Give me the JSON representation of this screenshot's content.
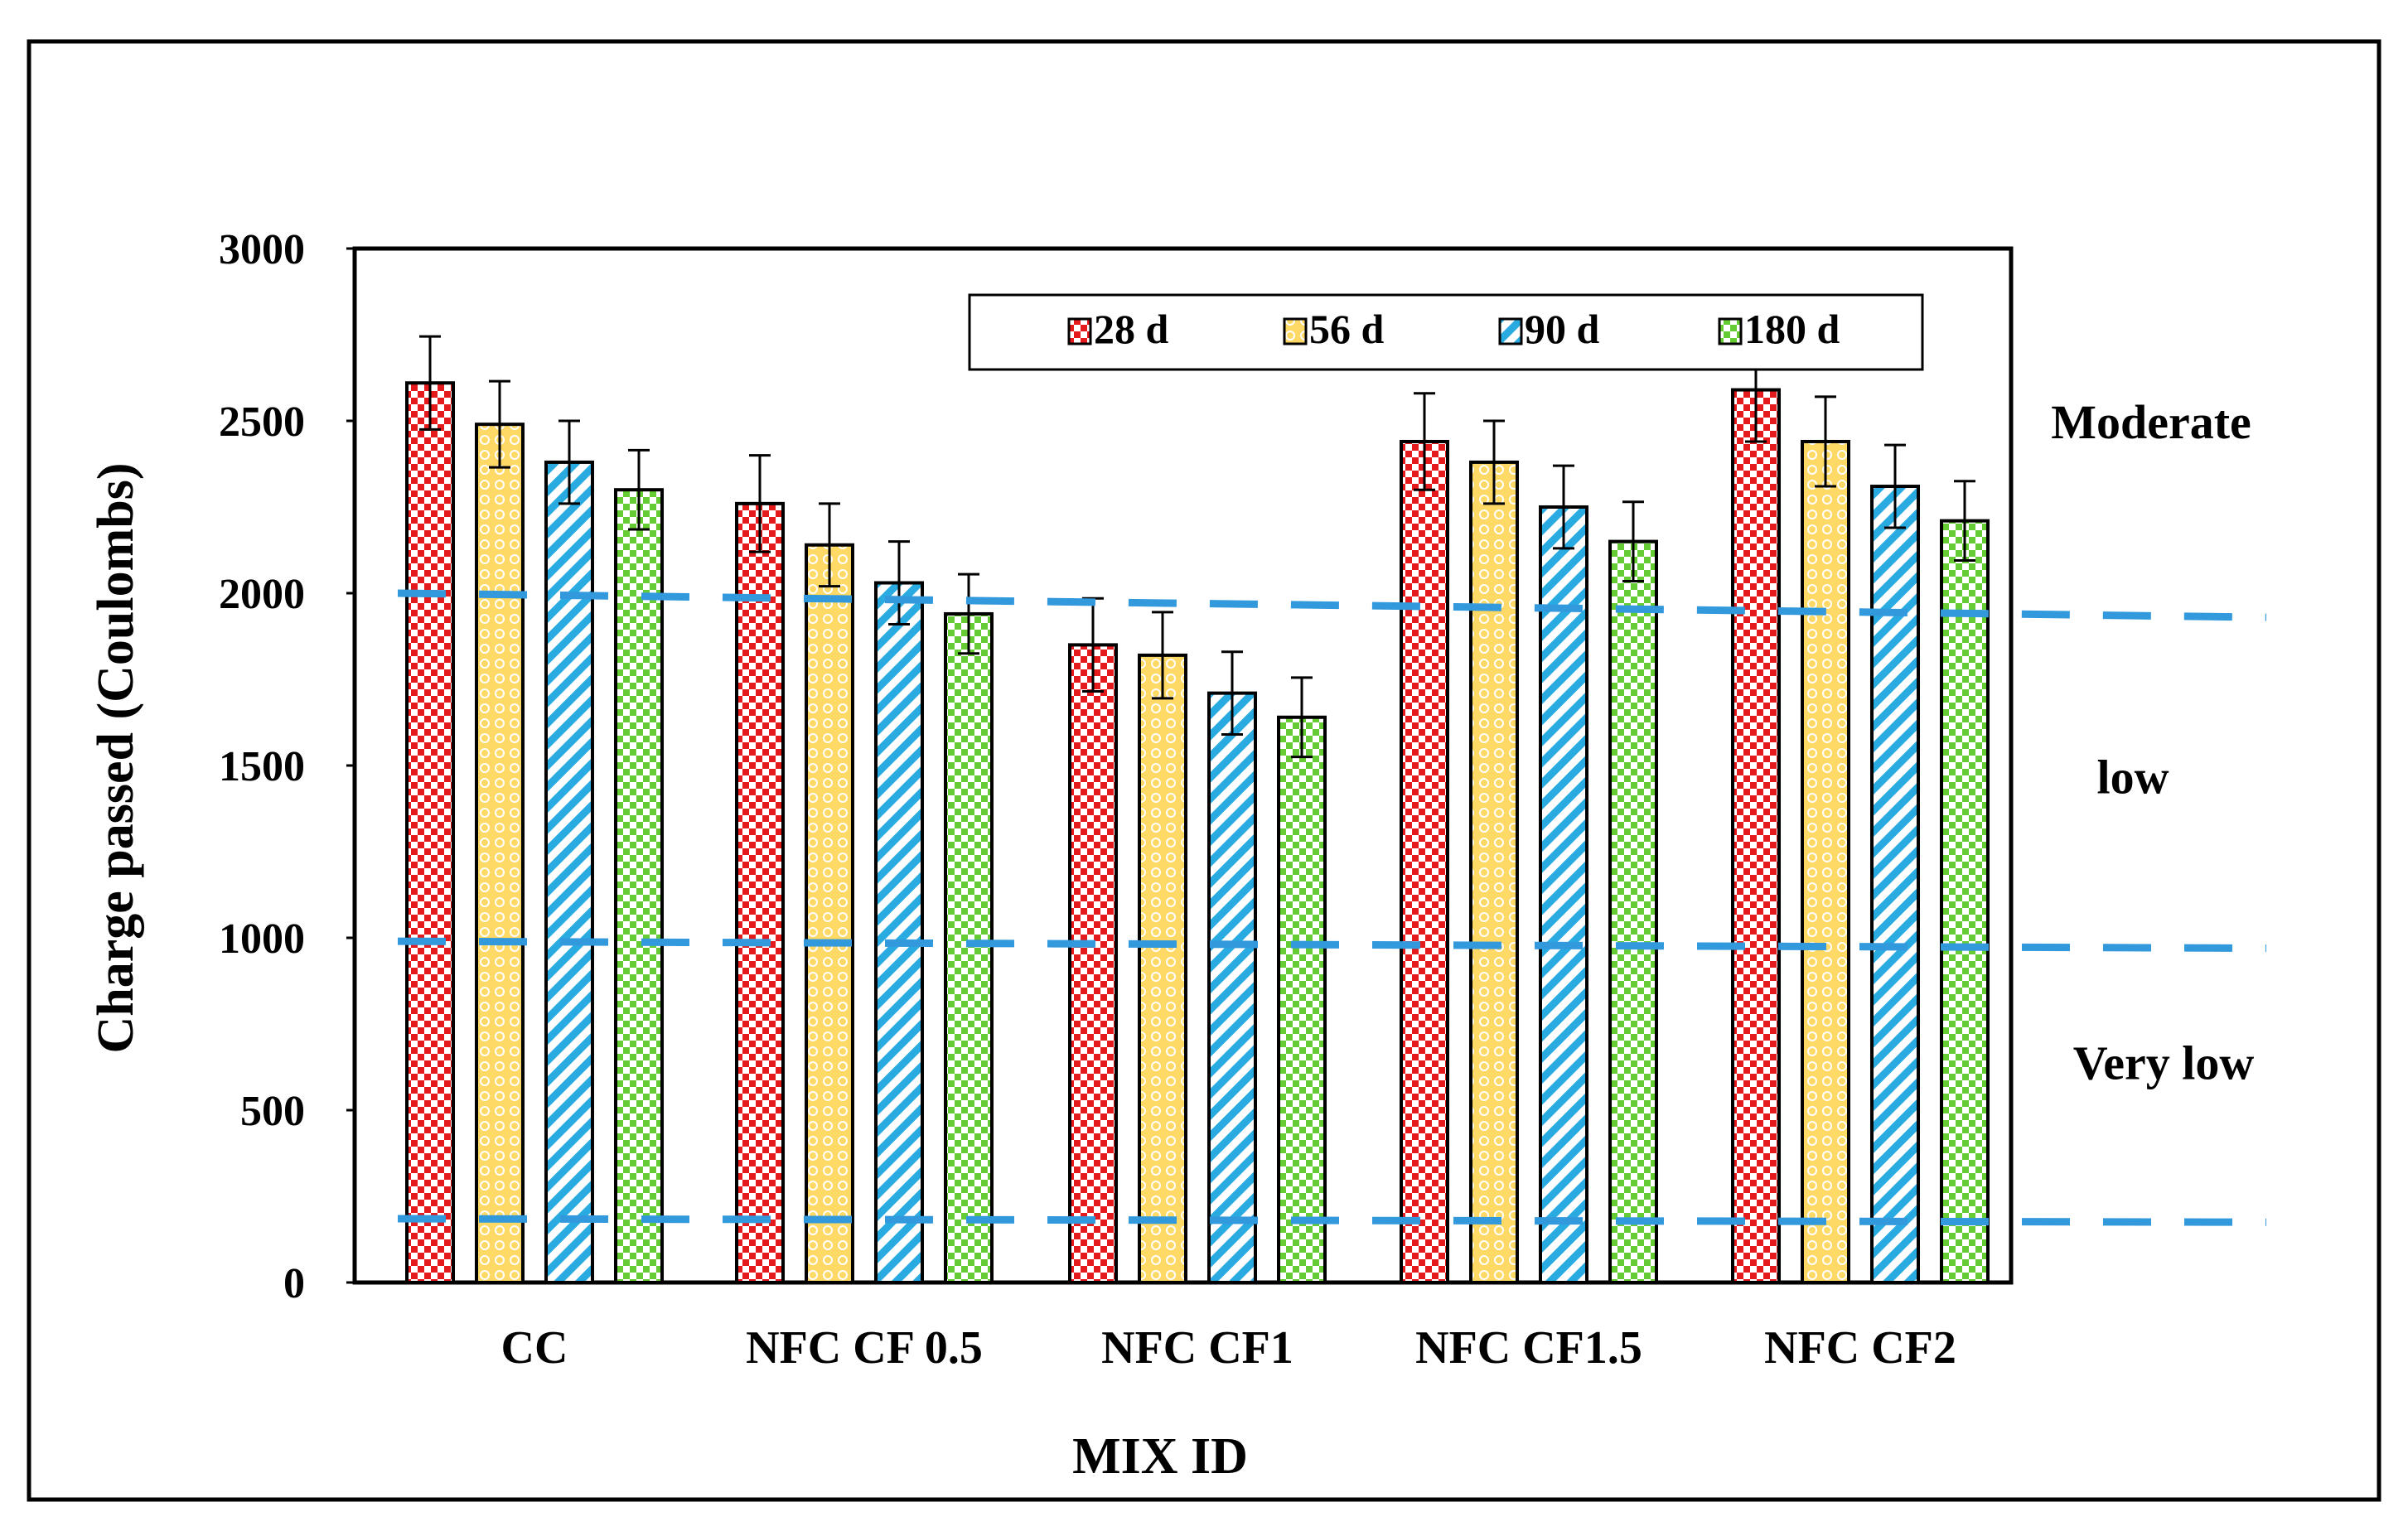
{
  "chart_data": {
    "type": "bar",
    "title": "",
    "xlabel": "MIX ID",
    "ylabel": "Charge passed (Coulombs)",
    "ylim": [
      0,
      3000
    ],
    "yticks": [
      0,
      500,
      1000,
      1500,
      2000,
      2500,
      3000
    ],
    "grid": false,
    "legend_position": "top-right",
    "categories": [
      "CC",
      "NFC CF 0.5",
      "NFC CF1",
      "NFC CF1.5",
      "NFC CF2"
    ],
    "series": [
      {
        "name": "28 d",
        "color": "#e41a1c",
        "pattern": "checker",
        "values": [
          2610,
          2260,
          1850,
          2440,
          2590
        ],
        "errors": [
          135,
          140,
          135,
          140,
          150
        ]
      },
      {
        "name": "56 d",
        "color": "#ffd966",
        "pattern": "circles",
        "values": [
          2490,
          2140,
          1820,
          2380,
          2440
        ],
        "errors": [
          125,
          120,
          125,
          120,
          130
        ]
      },
      {
        "name": "90 d",
        "color": "#29abe2",
        "pattern": "diagonal",
        "values": [
          2380,
          2030,
          1710,
          2250,
          2310
        ],
        "errors": [
          120,
          120,
          120,
          120,
          120
        ]
      },
      {
        "name": "180 d",
        "color": "#66cc33",
        "pattern": "checker",
        "values": [
          2300,
          1940,
          1640,
          2150,
          2210
        ],
        "errors": [
          115,
          115,
          115,
          115,
          115
        ]
      }
    ],
    "reference_lines": [
      {
        "start": 2000,
        "end": 1930
      },
      {
        "start": 990,
        "end": 970
      },
      {
        "start": 185,
        "end": 175
      }
    ],
    "annotations": [
      {
        "text": "Moderate",
        "y": 2450
      },
      {
        "text": "low",
        "y": 1420
      },
      {
        "text": "Very low",
        "y": 590
      }
    ]
  },
  "colors": {
    "reference_line": "#3399dd",
    "axis": "#000000"
  }
}
